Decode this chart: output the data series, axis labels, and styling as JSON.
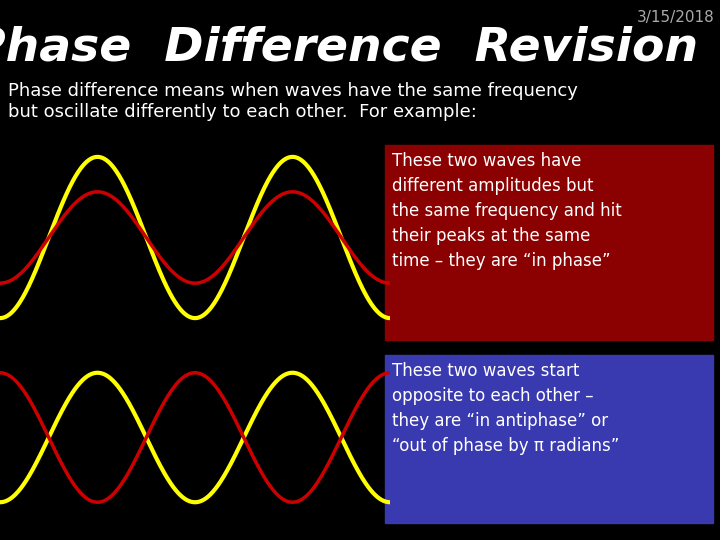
{
  "bg_color": "#000000",
  "title": "Phase  Difference  Revision",
  "title_color": "#ffffff",
  "title_fontsize": 34,
  "date_text": "3/15/2018",
  "date_color": "#aaaaaa",
  "date_fontsize": 11,
  "subtitle": "Phase difference means when waves have the same frequency\nbut oscillate differently to each other.  For example:",
  "subtitle_color": "#ffffff",
  "subtitle_fontsize": 13,
  "box1_color": "#8b0000",
  "box1_text": "These two waves have\ndifferent amplitudes but\nthe same frequency and hit\ntheir peaks at the same\ntime – they are “in phase”",
  "box2_color": "#3a3ab0",
  "box2_text": "These two waves start\nopposite to each other –\nthey are “in antiphase” or\n“out of phase by π radians”",
  "wave_color_yellow": "#ffff00",
  "wave_color_red": "#cc0000",
  "text_color": "#ffffff",
  "text_fontsize": 12,
  "wave1_yellow_amp": 1.5,
  "wave1_red_amp": 0.85,
  "wave2_yellow_amp": 1.4,
  "wave2_red_amp": 1.4
}
